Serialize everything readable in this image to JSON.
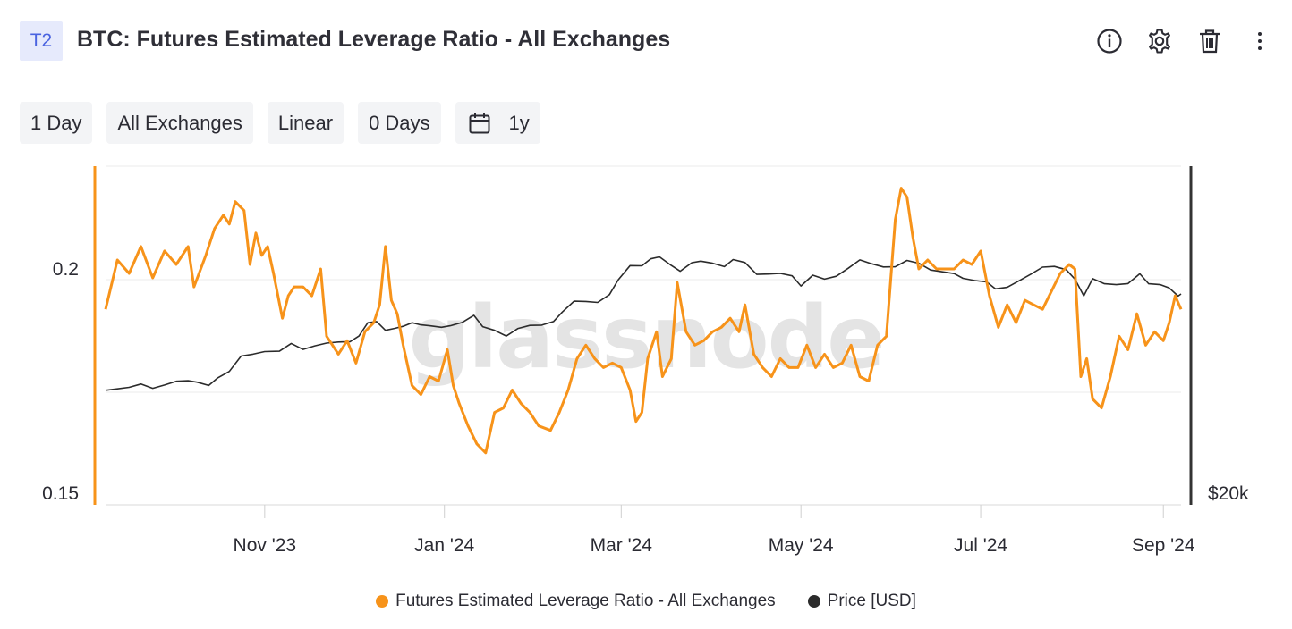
{
  "header": {
    "badge": "T2",
    "title": "BTC: Futures Estimated Leverage Ratio - All Exchanges",
    "icons": [
      "info-icon",
      "gear-icon",
      "trash-icon",
      "more-vertical-icon"
    ]
  },
  "controls": {
    "resolution": "1 Day",
    "exchange": "All Exchanges",
    "scale": "Linear",
    "moving_average": "0 Days",
    "range_icon": "calendar-icon",
    "range": "1y"
  },
  "watermark": "glassnode",
  "colors": {
    "leverage": "#f7931a",
    "price": "#2b2b2b",
    "grid": "#ebebeb",
    "axis": "#333333"
  },
  "legend": [
    {
      "label": "Futures Estimated Leverage Ratio - All Exchanges",
      "color": "#f7931a"
    },
    {
      "label": "Price [USD]",
      "color": "#2b2b2b"
    }
  ],
  "chart_data": {
    "type": "line",
    "x_ticks": [
      "Nov '23",
      "Jan '24",
      "Mar '24",
      "May '24",
      "Jul '24",
      "Sep '24"
    ],
    "y_left": {
      "ticks": [
        "0.2",
        "0.15"
      ]
    },
    "y_right": {
      "ticks": [
        "$20k"
      ],
      "scale": "log"
    },
    "grid": true,
    "series": [
      {
        "name": "Futures Estimated Leverage Ratio - All Exchanges",
        "axis": "left",
        "points": [
          [
            "2023-09-08",
            0.191
          ],
          [
            "2023-09-12",
            0.202
          ],
          [
            "2023-09-16",
            0.199
          ],
          [
            "2023-09-20",
            0.205
          ],
          [
            "2023-09-24",
            0.198
          ],
          [
            "2023-09-28",
            0.204
          ],
          [
            "2023-10-02",
            0.201
          ],
          [
            "2023-10-06",
            0.205
          ],
          [
            "2023-10-08",
            0.196
          ],
          [
            "2023-10-12",
            0.203
          ],
          [
            "2023-10-15",
            0.209
          ],
          [
            "2023-10-18",
            0.212
          ],
          [
            "2023-10-20",
            0.21
          ],
          [
            "2023-10-22",
            0.215
          ],
          [
            "2023-10-25",
            0.213
          ],
          [
            "2023-10-27",
            0.201
          ],
          [
            "2023-10-29",
            0.208
          ],
          [
            "2023-10-31",
            0.203
          ],
          [
            "2023-11-02",
            0.205
          ],
          [
            "2023-11-04",
            0.199
          ],
          [
            "2023-11-07",
            0.189
          ],
          [
            "2023-11-09",
            0.194
          ],
          [
            "2023-11-11",
            0.196
          ],
          [
            "2023-11-14",
            0.196
          ],
          [
            "2023-11-17",
            0.194
          ],
          [
            "2023-11-20",
            0.2
          ],
          [
            "2023-11-22",
            0.185
          ],
          [
            "2023-11-26",
            0.181
          ],
          [
            "2023-11-29",
            0.184
          ],
          [
            "2023-12-02",
            0.179
          ],
          [
            "2023-12-05",
            0.186
          ],
          [
            "2023-12-08",
            0.188
          ],
          [
            "2023-12-10",
            0.192
          ],
          [
            "2023-12-12",
            0.205
          ],
          [
            "2023-12-14",
            0.193
          ],
          [
            "2023-12-16",
            0.19
          ],
          [
            "2023-12-18",
            0.183
          ],
          [
            "2023-12-21",
            0.174
          ],
          [
            "2023-12-24",
            0.172
          ],
          [
            "2023-12-27",
            0.176
          ],
          [
            "2023-12-30",
            0.175
          ],
          [
            "2024-01-02",
            0.182
          ],
          [
            "2024-01-04",
            0.174
          ],
          [
            "2024-01-06",
            0.17
          ],
          [
            "2024-01-09",
            0.165
          ],
          [
            "2024-01-12",
            0.161
          ],
          [
            "2024-01-15",
            0.159
          ],
          [
            "2024-01-18",
            0.168
          ],
          [
            "2024-01-21",
            0.169
          ],
          [
            "2024-01-24",
            0.173
          ],
          [
            "2024-01-27",
            0.17
          ],
          [
            "2024-01-30",
            0.168
          ],
          [
            "2024-02-02",
            0.165
          ],
          [
            "2024-02-06",
            0.164
          ],
          [
            "2024-02-09",
            0.168
          ],
          [
            "2024-02-12",
            0.173
          ],
          [
            "2024-02-15",
            0.18
          ],
          [
            "2024-02-18",
            0.183
          ],
          [
            "2024-02-21",
            0.18
          ],
          [
            "2024-02-24",
            0.178
          ],
          [
            "2024-02-27",
            0.179
          ],
          [
            "2024-03-01",
            0.178
          ],
          [
            "2024-03-04",
            0.173
          ],
          [
            "2024-03-06",
            0.166
          ],
          [
            "2024-03-08",
            0.168
          ],
          [
            "2024-03-10",
            0.18
          ],
          [
            "2024-03-13",
            0.186
          ],
          [
            "2024-03-15",
            0.176
          ],
          [
            "2024-03-18",
            0.18
          ],
          [
            "2024-03-20",
            0.197
          ],
          [
            "2024-03-23",
            0.186
          ],
          [
            "2024-03-26",
            0.183
          ],
          [
            "2024-03-29",
            0.184
          ],
          [
            "2024-04-01",
            0.186
          ],
          [
            "2024-04-04",
            0.187
          ],
          [
            "2024-04-07",
            0.189
          ],
          [
            "2024-04-10",
            0.186
          ],
          [
            "2024-04-12",
            0.192
          ],
          [
            "2024-04-15",
            0.181
          ],
          [
            "2024-04-18",
            0.178
          ],
          [
            "2024-04-21",
            0.176
          ],
          [
            "2024-04-24",
            0.18
          ],
          [
            "2024-04-27",
            0.178
          ],
          [
            "2024-04-30",
            0.178
          ],
          [
            "2024-05-03",
            0.183
          ],
          [
            "2024-05-06",
            0.178
          ],
          [
            "2024-05-09",
            0.181
          ],
          [
            "2024-05-12",
            0.178
          ],
          [
            "2024-05-15",
            0.179
          ],
          [
            "2024-05-18",
            0.183
          ],
          [
            "2024-05-21",
            0.176
          ],
          [
            "2024-05-24",
            0.175
          ],
          [
            "2024-05-27",
            0.183
          ],
          [
            "2024-05-30",
            0.185
          ],
          [
            "2024-06-02",
            0.211
          ],
          [
            "2024-06-04",
            0.218
          ],
          [
            "2024-06-06",
            0.216
          ],
          [
            "2024-06-08",
            0.207
          ],
          [
            "2024-06-10",
            0.2
          ],
          [
            "2024-06-13",
            0.202
          ],
          [
            "2024-06-16",
            0.2
          ],
          [
            "2024-06-19",
            0.2
          ],
          [
            "2024-06-22",
            0.2
          ],
          [
            "2024-06-25",
            0.202
          ],
          [
            "2024-06-28",
            0.201
          ],
          [
            "2024-07-01",
            0.204
          ],
          [
            "2024-07-04",
            0.194
          ],
          [
            "2024-07-07",
            0.187
          ],
          [
            "2024-07-10",
            0.192
          ],
          [
            "2024-07-13",
            0.188
          ],
          [
            "2024-07-16",
            0.193
          ],
          [
            "2024-07-19",
            0.192
          ],
          [
            "2024-07-22",
            0.191
          ],
          [
            "2024-07-25",
            0.195
          ],
          [
            "2024-07-28",
            0.199
          ],
          [
            "2024-07-31",
            0.201
          ],
          [
            "2024-08-02",
            0.2
          ],
          [
            "2024-08-04",
            0.176
          ],
          [
            "2024-08-06",
            0.18
          ],
          [
            "2024-08-08",
            0.171
          ],
          [
            "2024-08-11",
            0.169
          ],
          [
            "2024-08-14",
            0.176
          ],
          [
            "2024-08-17",
            0.185
          ],
          [
            "2024-08-20",
            0.182
          ],
          [
            "2024-08-23",
            0.19
          ],
          [
            "2024-08-26",
            0.183
          ],
          [
            "2024-08-29",
            0.186
          ],
          [
            "2024-09-01",
            0.184
          ],
          [
            "2024-09-03",
            0.188
          ],
          [
            "2024-09-05",
            0.194
          ],
          [
            "2024-09-07",
            0.191
          ]
        ]
      },
      {
        "name": "Price [USD]",
        "axis": "right",
        "points": [
          [
            "2023-09-08",
            25900
          ],
          [
            "2023-09-12",
            26200
          ],
          [
            "2023-09-16",
            26500
          ],
          [
            "2023-09-20",
            27200
          ],
          [
            "2023-09-24",
            26300
          ],
          [
            "2023-09-28",
            27000
          ],
          [
            "2023-10-02",
            27800
          ],
          [
            "2023-10-06",
            27900
          ],
          [
            "2023-10-09",
            27600
          ],
          [
            "2023-10-13",
            26900
          ],
          [
            "2023-10-16",
            28500
          ],
          [
            "2023-10-20",
            30000
          ],
          [
            "2023-10-24",
            33800
          ],
          [
            "2023-10-28",
            34300
          ],
          [
            "2023-11-01",
            35000
          ],
          [
            "2023-11-06",
            35100
          ],
          [
            "2023-11-10",
            37300
          ],
          [
            "2023-11-14",
            35600
          ],
          [
            "2023-11-18",
            36600
          ],
          [
            "2023-11-22",
            37400
          ],
          [
            "2023-11-26",
            37700
          ],
          [
            "2023-11-30",
            37800
          ],
          [
            "2023-12-03",
            39500
          ],
          [
            "2023-12-06",
            43800
          ],
          [
            "2023-12-09",
            44200
          ],
          [
            "2023-12-12",
            41300
          ],
          [
            "2023-12-15",
            41900
          ],
          [
            "2023-12-18",
            42600
          ],
          [
            "2023-12-21",
            43800
          ],
          [
            "2023-12-24",
            43100
          ],
          [
            "2023-12-27",
            42800
          ],
          [
            "2023-12-31",
            42300
          ],
          [
            "2024-01-03",
            42800
          ],
          [
            "2024-01-07",
            43900
          ],
          [
            "2024-01-11",
            46400
          ],
          [
            "2024-01-14",
            42500
          ],
          [
            "2024-01-18",
            41300
          ],
          [
            "2024-01-22",
            39500
          ],
          [
            "2024-01-26",
            41900
          ],
          [
            "2024-01-30",
            42900
          ],
          [
            "2024-02-03",
            43000
          ],
          [
            "2024-02-07",
            44200
          ],
          [
            "2024-02-10",
            47600
          ],
          [
            "2024-02-14",
            51800
          ],
          [
            "2024-02-18",
            51700
          ],
          [
            "2024-02-22",
            51300
          ],
          [
            "2024-02-26",
            54500
          ],
          [
            "2024-02-29",
            61200
          ],
          [
            "2024-03-04",
            68300
          ],
          [
            "2024-03-08",
            68200
          ],
          [
            "2024-03-11",
            72000
          ],
          [
            "2024-03-14",
            73100
          ],
          [
            "2024-03-18",
            68400
          ],
          [
            "2024-03-21",
            65400
          ],
          [
            "2024-03-25",
            69900
          ],
          [
            "2024-03-28",
            70700
          ],
          [
            "2024-04-01",
            69600
          ],
          [
            "2024-04-05",
            67800
          ],
          [
            "2024-04-08",
            71600
          ],
          [
            "2024-04-12",
            70000
          ],
          [
            "2024-04-16",
            63800
          ],
          [
            "2024-04-20",
            64000
          ],
          [
            "2024-04-24",
            64300
          ],
          [
            "2024-04-28",
            63100
          ],
          [
            "2024-05-01",
            58300
          ],
          [
            "2024-05-05",
            63400
          ],
          [
            "2024-05-09",
            61500
          ],
          [
            "2024-05-13",
            62900
          ],
          [
            "2024-05-17",
            66900
          ],
          [
            "2024-05-21",
            71400
          ],
          [
            "2024-05-25",
            69300
          ],
          [
            "2024-05-29",
            67600
          ],
          [
            "2024-06-02",
            67700
          ],
          [
            "2024-06-06",
            71100
          ],
          [
            "2024-06-10",
            69600
          ],
          [
            "2024-06-14",
            66000
          ],
          [
            "2024-06-18",
            65100
          ],
          [
            "2024-06-22",
            64200
          ],
          [
            "2024-06-25",
            61900
          ],
          [
            "2024-06-29",
            60800
          ],
          [
            "2024-07-03",
            60200
          ],
          [
            "2024-07-06",
            57000
          ],
          [
            "2024-07-10",
            57700
          ],
          [
            "2024-07-14",
            60700
          ],
          [
            "2024-07-18",
            63900
          ],
          [
            "2024-07-22",
            67500
          ],
          [
            "2024-07-26",
            67900
          ],
          [
            "2024-07-30",
            66200
          ],
          [
            "2024-08-02",
            61500
          ],
          [
            "2024-08-05",
            54000
          ],
          [
            "2024-08-08",
            61700
          ],
          [
            "2024-08-12",
            59300
          ],
          [
            "2024-08-16",
            58900
          ],
          [
            "2024-08-20",
            59400
          ],
          [
            "2024-08-24",
            64100
          ],
          [
            "2024-08-27",
            59300
          ],
          [
            "2024-08-31",
            58900
          ],
          [
            "2024-09-03",
            57400
          ],
          [
            "2024-09-06",
            53900
          ],
          [
            "2024-09-07",
            54800
          ]
        ]
      }
    ]
  }
}
